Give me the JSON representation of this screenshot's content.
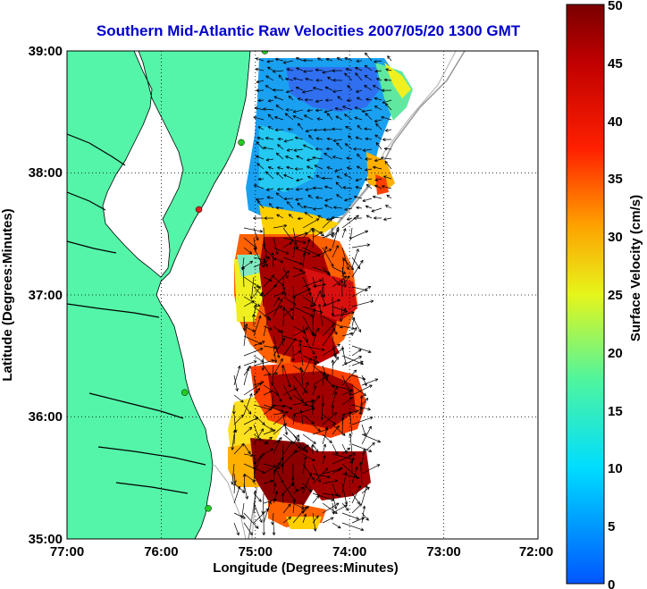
{
  "title": "Southern Mid-Atlantic Raw Velocities 2007/05/20 1300 GMT",
  "xlabel": "Longitude (Degrees:Minutes)",
  "ylabel": "Latitude (Degrees:Minutes)",
  "x_ticks": [
    "77:00",
    "76:00",
    "75:00",
    "74:00",
    "73:00",
    "72:00"
  ],
  "y_ticks": [
    "39:00",
    "38:00",
    "37:00",
    "36:00",
    "35:00"
  ],
  "colorbar": {
    "label": "Surface Velocity (cm/s)",
    "ticks": [
      "50",
      "45",
      "40",
      "35",
      "30",
      "25",
      "20",
      "15",
      "10",
      "5",
      "0"
    ],
    "min": 0,
    "max": 50
  },
  "colors": {
    "land": "#54f5a8",
    "title": "#0000cc",
    "station": "#22cc22",
    "station_alt": "#e02020"
  },
  "map_extent": {
    "lon": [
      -77,
      -72
    ],
    "lat": [
      35,
      39
    ]
  },
  "stations": [
    {
      "lon": -74.9,
      "lat": 39.0
    },
    {
      "lon": -75.15,
      "lat": 38.25
    },
    {
      "lon": -75.6,
      "lat": 37.7
    },
    {
      "lon": -75.75,
      "lat": 36.2
    },
    {
      "lon": -75.5,
      "lat": 35.25
    }
  ]
}
